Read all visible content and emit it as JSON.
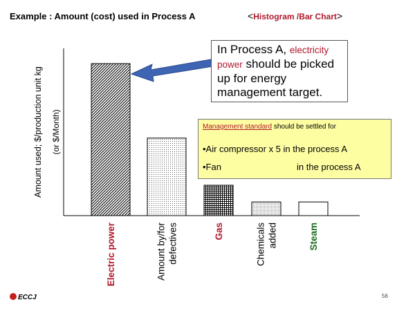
{
  "slide": {
    "title": "Example : Amount (cost) used in Process A",
    "subtitle_open": "<",
    "subtitle": "Histogram /Bar Chart",
    "subtitle_close": ">",
    "page_number": "56",
    "logo_text": "ECCJ"
  },
  "callout": {
    "line1_a": "In Process A, ",
    "line1_b": "electricity",
    "line2_a": "power",
    "line2_b": " should be picked",
    "line3": "up for energy",
    "line4": "management target."
  },
  "management_box": {
    "heading_underlined": "Management standard",
    "heading_rest": " should be settled for",
    "line1": "•Air compressor x 5 in the process A",
    "line2_a": "•Fan",
    "line2_b": "in the process A"
  },
  "colors": {
    "red": "#b0182c",
    "green": "#1a6b1a",
    "black": "#000000",
    "box_yellow": "#fdfda2",
    "arrow_blue": "#3e64b4"
  },
  "chart_data": {
    "type": "bar",
    "ylabel": "Amount used; $/production unit kg",
    "ylabel2": "(or $/Month)",
    "ylim": [
      0,
      100
    ],
    "grid": false,
    "categories": [
      {
        "label": [
          "Electric power"
        ],
        "color": "#b0182c",
        "bold": true,
        "pattern": "diag"
      },
      {
        "label": [
          "Amount by/for",
          "defectives"
        ],
        "color": "#000000",
        "bold": false,
        "pattern": "dots"
      },
      {
        "label": [
          "Gas"
        ],
        "color": "#b0182c",
        "bold": true,
        "pattern": "grid"
      },
      {
        "label": [
          "Chemicals",
          "added"
        ],
        "color": "#000000",
        "bold": false,
        "pattern": "fine"
      },
      {
        "label": [
          "Steam"
        ],
        "color": "#1a6b1a",
        "bold": true,
        "pattern": "plain"
      }
    ],
    "values": [
      100,
      51,
      20,
      9,
      9
    ]
  }
}
